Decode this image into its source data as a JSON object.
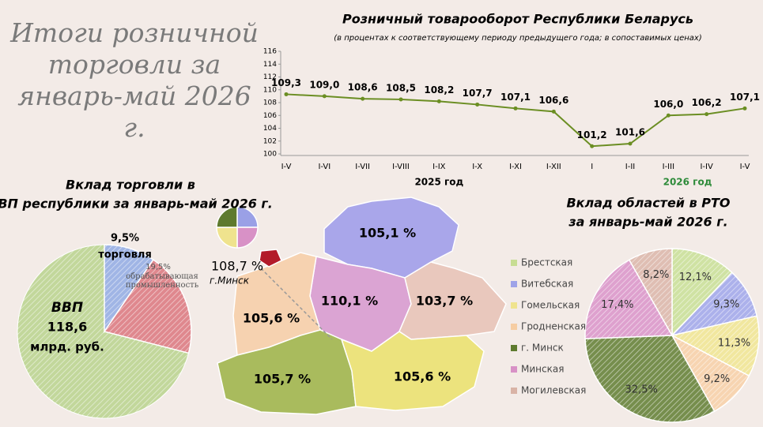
{
  "headline": "Итоги розничной торговли за январь-май 2026 г.",
  "chart_data": [
    {
      "type": "line",
      "title": "Розничный товарооборот Республики Беларусь",
      "subtitle": "(в процентах к соответствующему периоду предыдущего года; в сопоставимых ценах)",
      "categories": [
        "I-V",
        "I-VI",
        "I-VII",
        "I-VIII",
        "I-IX",
        "I-X",
        "I-XI",
        "I-XII",
        "I",
        "I-II",
        "I-III",
        "I-IV",
        "I-V"
      ],
      "group_labels": [
        "2025 год",
        "2026 год"
      ],
      "series": [
        {
          "color": "#6b8e23",
          "values": [
            109.3,
            109.0,
            108.6,
            108.5,
            108.2,
            107.7,
            107.1,
            106.6,
            101.2,
            101.6,
            106.0,
            106.2,
            107.1
          ],
          "value_labels": [
            "109,3",
            "109,0",
            "108,6",
            "108,5",
            "108,2",
            "107,7",
            "107,1",
            "106,6",
            "101,2",
            "101,6",
            "106,0",
            "106,2",
            "107,1"
          ]
        }
      ],
      "ylim": [
        100,
        116
      ],
      "yticks": [
        100,
        102,
        104,
        106,
        108,
        110,
        112,
        114,
        116
      ]
    },
    {
      "type": "pie",
      "title": "Вклад торговли в ВВП республики за январь-май 2026 г.",
      "categories": [
        "торговля",
        "обрабатывающая промышленность"
      ],
      "values": [
        9.5,
        19.5
      ],
      "value_labels": [
        "9,5%",
        "19,5%"
      ],
      "colors": [
        "#8fa8e0",
        "#d9737a"
      ],
      "total": {
        "label": "ВВП",
        "value": 118.6,
        "value_label": "118,6",
        "unit": "млрд. руб.",
        "color": "#b7d08a"
      }
    },
    {
      "type": "pie",
      "title": "Вклад областей в РТО за январь-май 2026 г.",
      "categories": [
        "Брестская",
        "Витебская",
        "Гомельская",
        "Гродненская",
        "г. Минск",
        "Минская",
        "Могилевская"
      ],
      "values": [
        12.1,
        9.3,
        11.3,
        9.2,
        32.5,
        17.4,
        8.2
      ],
      "value_labels": [
        "12,1%",
        "9,3%",
        "11,3%",
        "9,2%",
        "32,5%",
        "17,4%",
        "8,2%"
      ],
      "colors": [
        "#c7dd93",
        "#9ea3e8",
        "#efe38e",
        "#f6cda3",
        "#5e7a2e",
        "#d891c6",
        "#d9b3a6"
      ]
    }
  ],
  "map": {
    "regions": [
      "105,1 %",
      "110,1 %",
      "103,7 %",
      "105,6 %",
      "105,7 %",
      "105,6 %"
    ],
    "city": {
      "value": "108,7 %",
      "name": "г.Минск"
    }
  }
}
